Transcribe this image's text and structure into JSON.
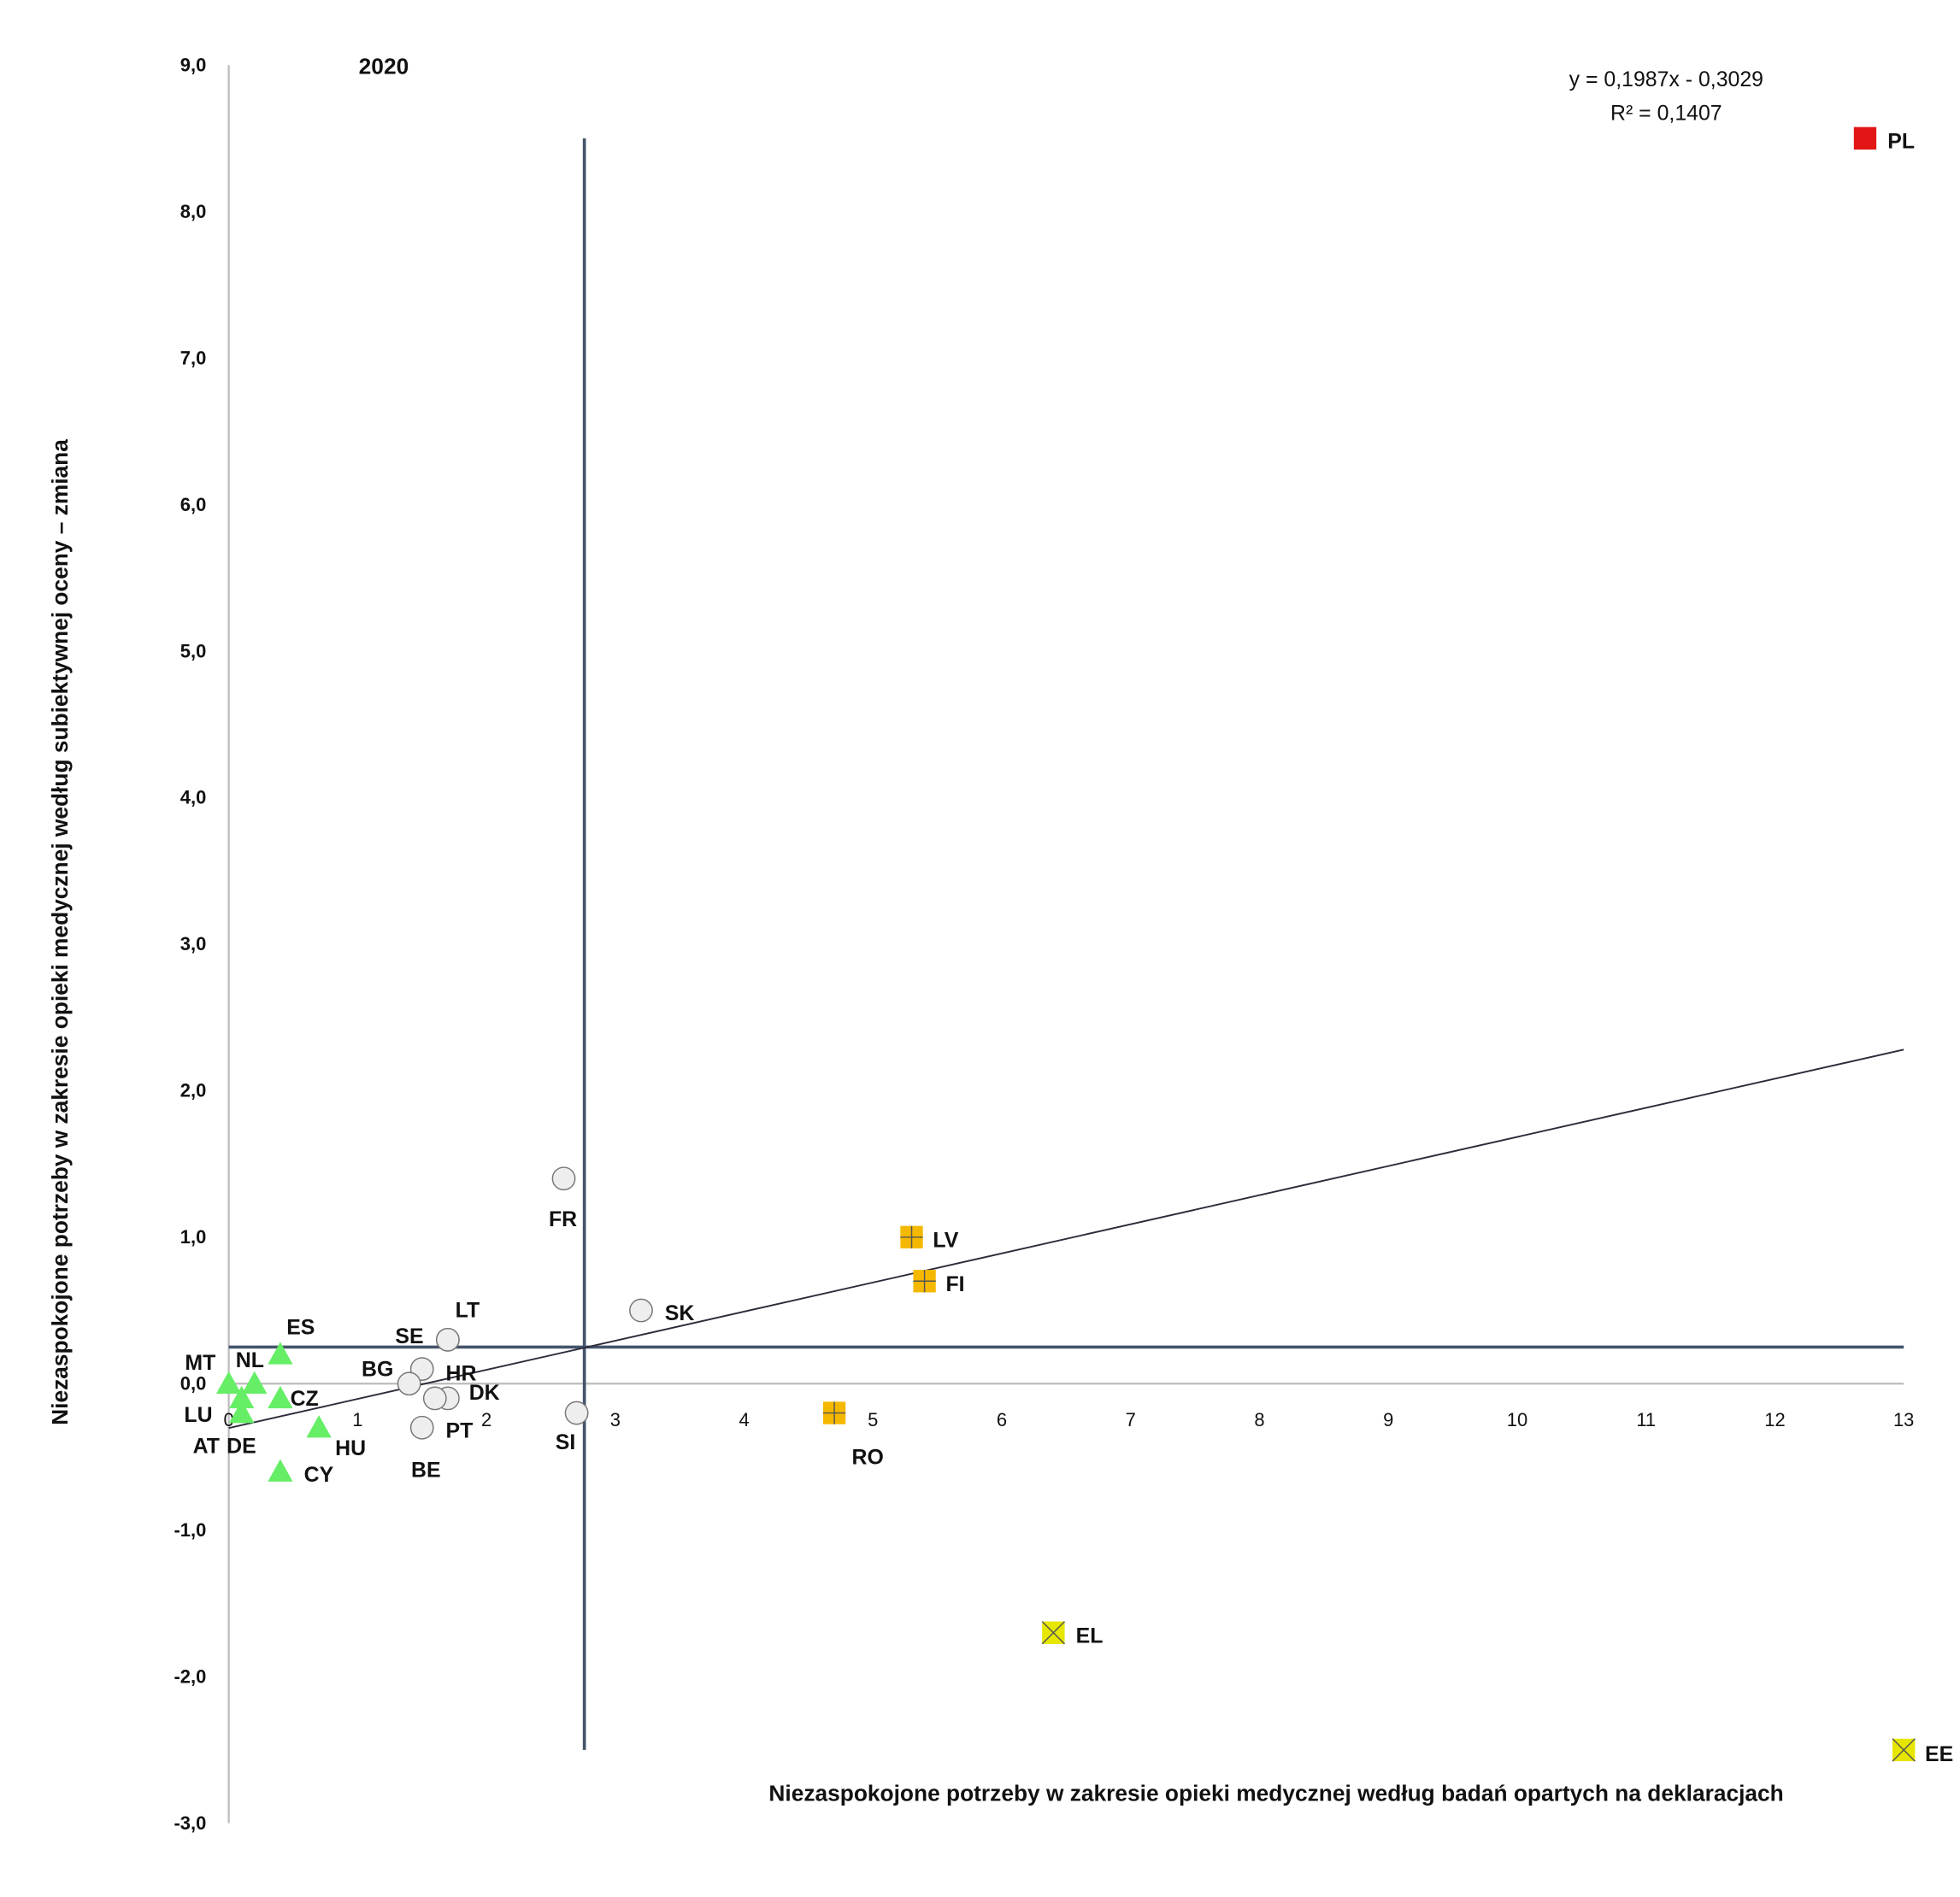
{
  "chart_data": {
    "type": "scatter",
    "title": "2020",
    "xlabel": "Niezaspokojone potrzeby w zakresie opieki medycznej według badań opartych na deklaracjach",
    "ylabel": "Niezaspokojone potrzeby w zakresie opieki medycznej według subiektywnej oceny – zmiana",
    "xlim": [
      0,
      13
    ],
    "ylim": [
      -3,
      9
    ],
    "xticks": [
      "0",
      "1",
      "2",
      "3",
      "4",
      "5",
      "6",
      "7",
      "8",
      "9",
      "10",
      "11",
      "12",
      "13"
    ],
    "yticks": [
      "9,0",
      "8,0",
      "7,0",
      "6,0",
      "5,0",
      "4,0",
      "3,0",
      "2,0",
      "1,0",
      "0,0",
      "-1,0",
      "-2,0",
      "-3,0"
    ],
    "grid": false,
    "trendline": {
      "equation": "y = 0,1987x - 0,3029",
      "r2": "R² = 0,1407",
      "slope": 0.1987,
      "intercept": -0.3029
    },
    "reference_lines": {
      "x": 2.76,
      "y": 0.25
    },
    "marker_colors": {
      "triangle": "#66ee66",
      "circle": "#eeeeee",
      "plus_square": "#f5b800",
      "x_square": "#e6e600",
      "square": "#e31515"
    },
    "points": [
      {
        "label": "PL",
        "x": 12.7,
        "y": 8.5,
        "marker": "square"
      },
      {
        "label": "EE",
        "x": 13.0,
        "y": -2.5,
        "marker": "x_square"
      },
      {
        "label": "EL",
        "x": 6.4,
        "y": -1.7,
        "marker": "x_square"
      },
      {
        "label": "LV",
        "x": 5.3,
        "y": 1.0,
        "marker": "plus_square"
      },
      {
        "label": "FI",
        "x": 5.4,
        "y": 0.7,
        "marker": "plus_square"
      },
      {
        "label": "RO",
        "x": 4.7,
        "y": -0.2,
        "marker": "plus_square"
      },
      {
        "label": "SK",
        "x": 3.2,
        "y": 0.5,
        "marker": "circle"
      },
      {
        "label": "FR",
        "x": 2.6,
        "y": 1.4,
        "marker": "circle"
      },
      {
        "label": "SI",
        "x": 2.7,
        "y": -0.2,
        "marker": "circle"
      },
      {
        "label": "LT",
        "x": 1.7,
        "y": 0.3,
        "marker": "circle"
      },
      {
        "label": "SE",
        "x": 1.7,
        "y": 0.3,
        "marker": "circle"
      },
      {
        "label": "HR",
        "x": 1.5,
        "y": 0.1,
        "marker": "circle"
      },
      {
        "label": "BG",
        "x": 1.4,
        "y": 0.0,
        "marker": "circle"
      },
      {
        "label": "DK",
        "x": 1.7,
        "y": -0.1,
        "marker": "circle"
      },
      {
        "label": "BE",
        "x": 1.6,
        "y": -0.1,
        "marker": "circle"
      },
      {
        "label": "PT",
        "x": 1.5,
        "y": -0.3,
        "marker": "circle"
      },
      {
        "label": "MT",
        "x": 0.0,
        "y": 0.0,
        "marker": "triangle"
      },
      {
        "label": "NL",
        "x": 0.2,
        "y": 0.0,
        "marker": "triangle"
      },
      {
        "label": "ES",
        "x": 0.4,
        "y": 0.2,
        "marker": "triangle"
      },
      {
        "label": "CZ",
        "x": 0.4,
        "y": -0.1,
        "marker": "triangle"
      },
      {
        "label": "LU",
        "x": 0.1,
        "y": -0.1,
        "marker": "triangle"
      },
      {
        "label": "AT",
        "x": 0.1,
        "y": -0.2,
        "marker": "triangle"
      },
      {
        "label": "DE",
        "x": 0.1,
        "y": -0.2,
        "marker": "triangle"
      },
      {
        "label": "HU",
        "x": 0.7,
        "y": -0.3,
        "marker": "triangle"
      },
      {
        "label": "CY",
        "x": 0.4,
        "y": -0.6,
        "marker": "triangle"
      }
    ]
  }
}
